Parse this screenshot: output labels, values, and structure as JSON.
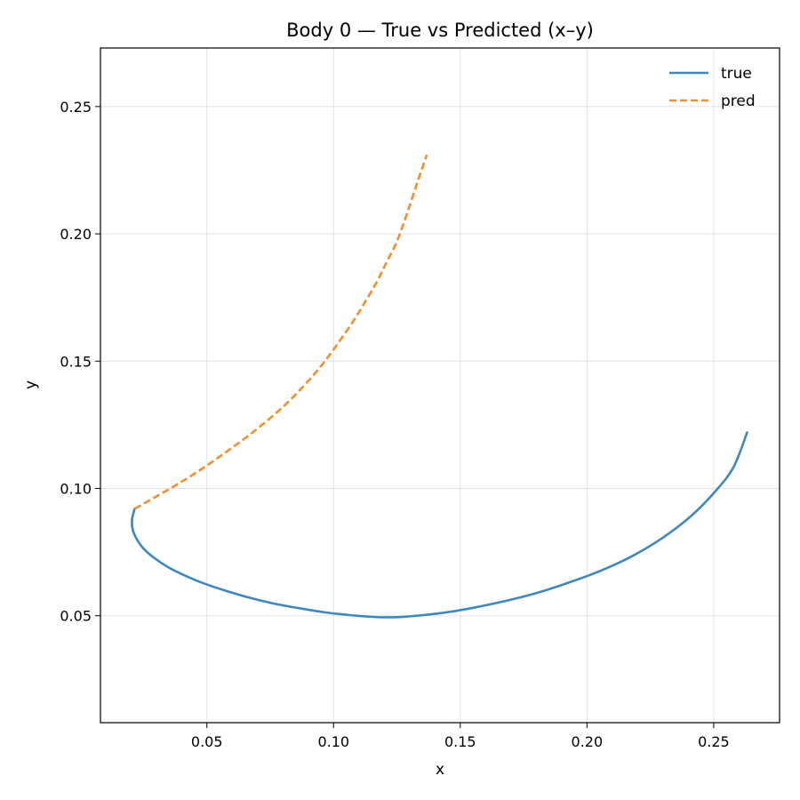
{
  "chart_data": {
    "type": "line",
    "title": "Body 0 — True vs Predicted (x–y)",
    "xlabel": "x",
    "ylabel": "y",
    "xlim": [
      0.008,
      0.276
    ],
    "ylim": [
      0.008,
      0.273
    ],
    "xticks": [
      0.05,
      0.1,
      0.15,
      0.2,
      0.25
    ],
    "yticks": [
      0.05,
      0.1,
      0.15,
      0.2,
      0.25
    ],
    "xtick_labels": [
      "0.05",
      "0.10",
      "0.15",
      "0.20",
      "0.25"
    ],
    "ytick_labels": [
      "0.05",
      "0.10",
      "0.15",
      "0.20",
      "0.25"
    ],
    "grid": true,
    "legend_position": "top-right",
    "series": [
      {
        "name": "true",
        "color": "#3f88bf",
        "dash": "solid",
        "x": [
          0.0215,
          0.0205,
          0.0207,
          0.0222,
          0.0249,
          0.0291,
          0.0345,
          0.0411,
          0.0488,
          0.0575,
          0.0668,
          0.0768,
          0.0868,
          0.0968,
          0.1068,
          0.1132,
          0.119,
          0.1262,
          0.135,
          0.145,
          0.1555,
          0.167,
          0.1794,
          0.1922,
          0.205,
          0.2178,
          0.23,
          0.241,
          0.2505,
          0.2578,
          0.2632
        ],
        "y": [
          0.092,
          0.088,
          0.084,
          0.0803,
          0.0765,
          0.0728,
          0.0692,
          0.0659,
          0.0627,
          0.0598,
          0.0571,
          0.0547,
          0.0529,
          0.0513,
          0.0502,
          0.0497,
          0.0494,
          0.0495,
          0.0502,
          0.0514,
          0.0532,
          0.0556,
          0.0587,
          0.0628,
          0.0675,
          0.0734,
          0.0807,
          0.0891,
          0.0987,
          0.1083,
          0.122
        ]
      },
      {
        "name": "pred",
        "color": "#f28e2b",
        "dash": "dashed",
        "x": [
          0.0215,
          0.03,
          0.04,
          0.05,
          0.06,
          0.07,
          0.08,
          0.088,
          0.095,
          0.101,
          0.107,
          0.112,
          0.117,
          0.121,
          0.125,
          0.129,
          0.133,
          0.1368
        ],
        "y": [
          0.092,
          0.0968,
          0.1026,
          0.109,
          0.116,
          0.1235,
          0.132,
          0.14,
          0.148,
          0.156,
          0.1645,
          0.1725,
          0.181,
          0.189,
          0.197,
          0.208,
          0.22,
          0.231
        ]
      }
    ]
  }
}
